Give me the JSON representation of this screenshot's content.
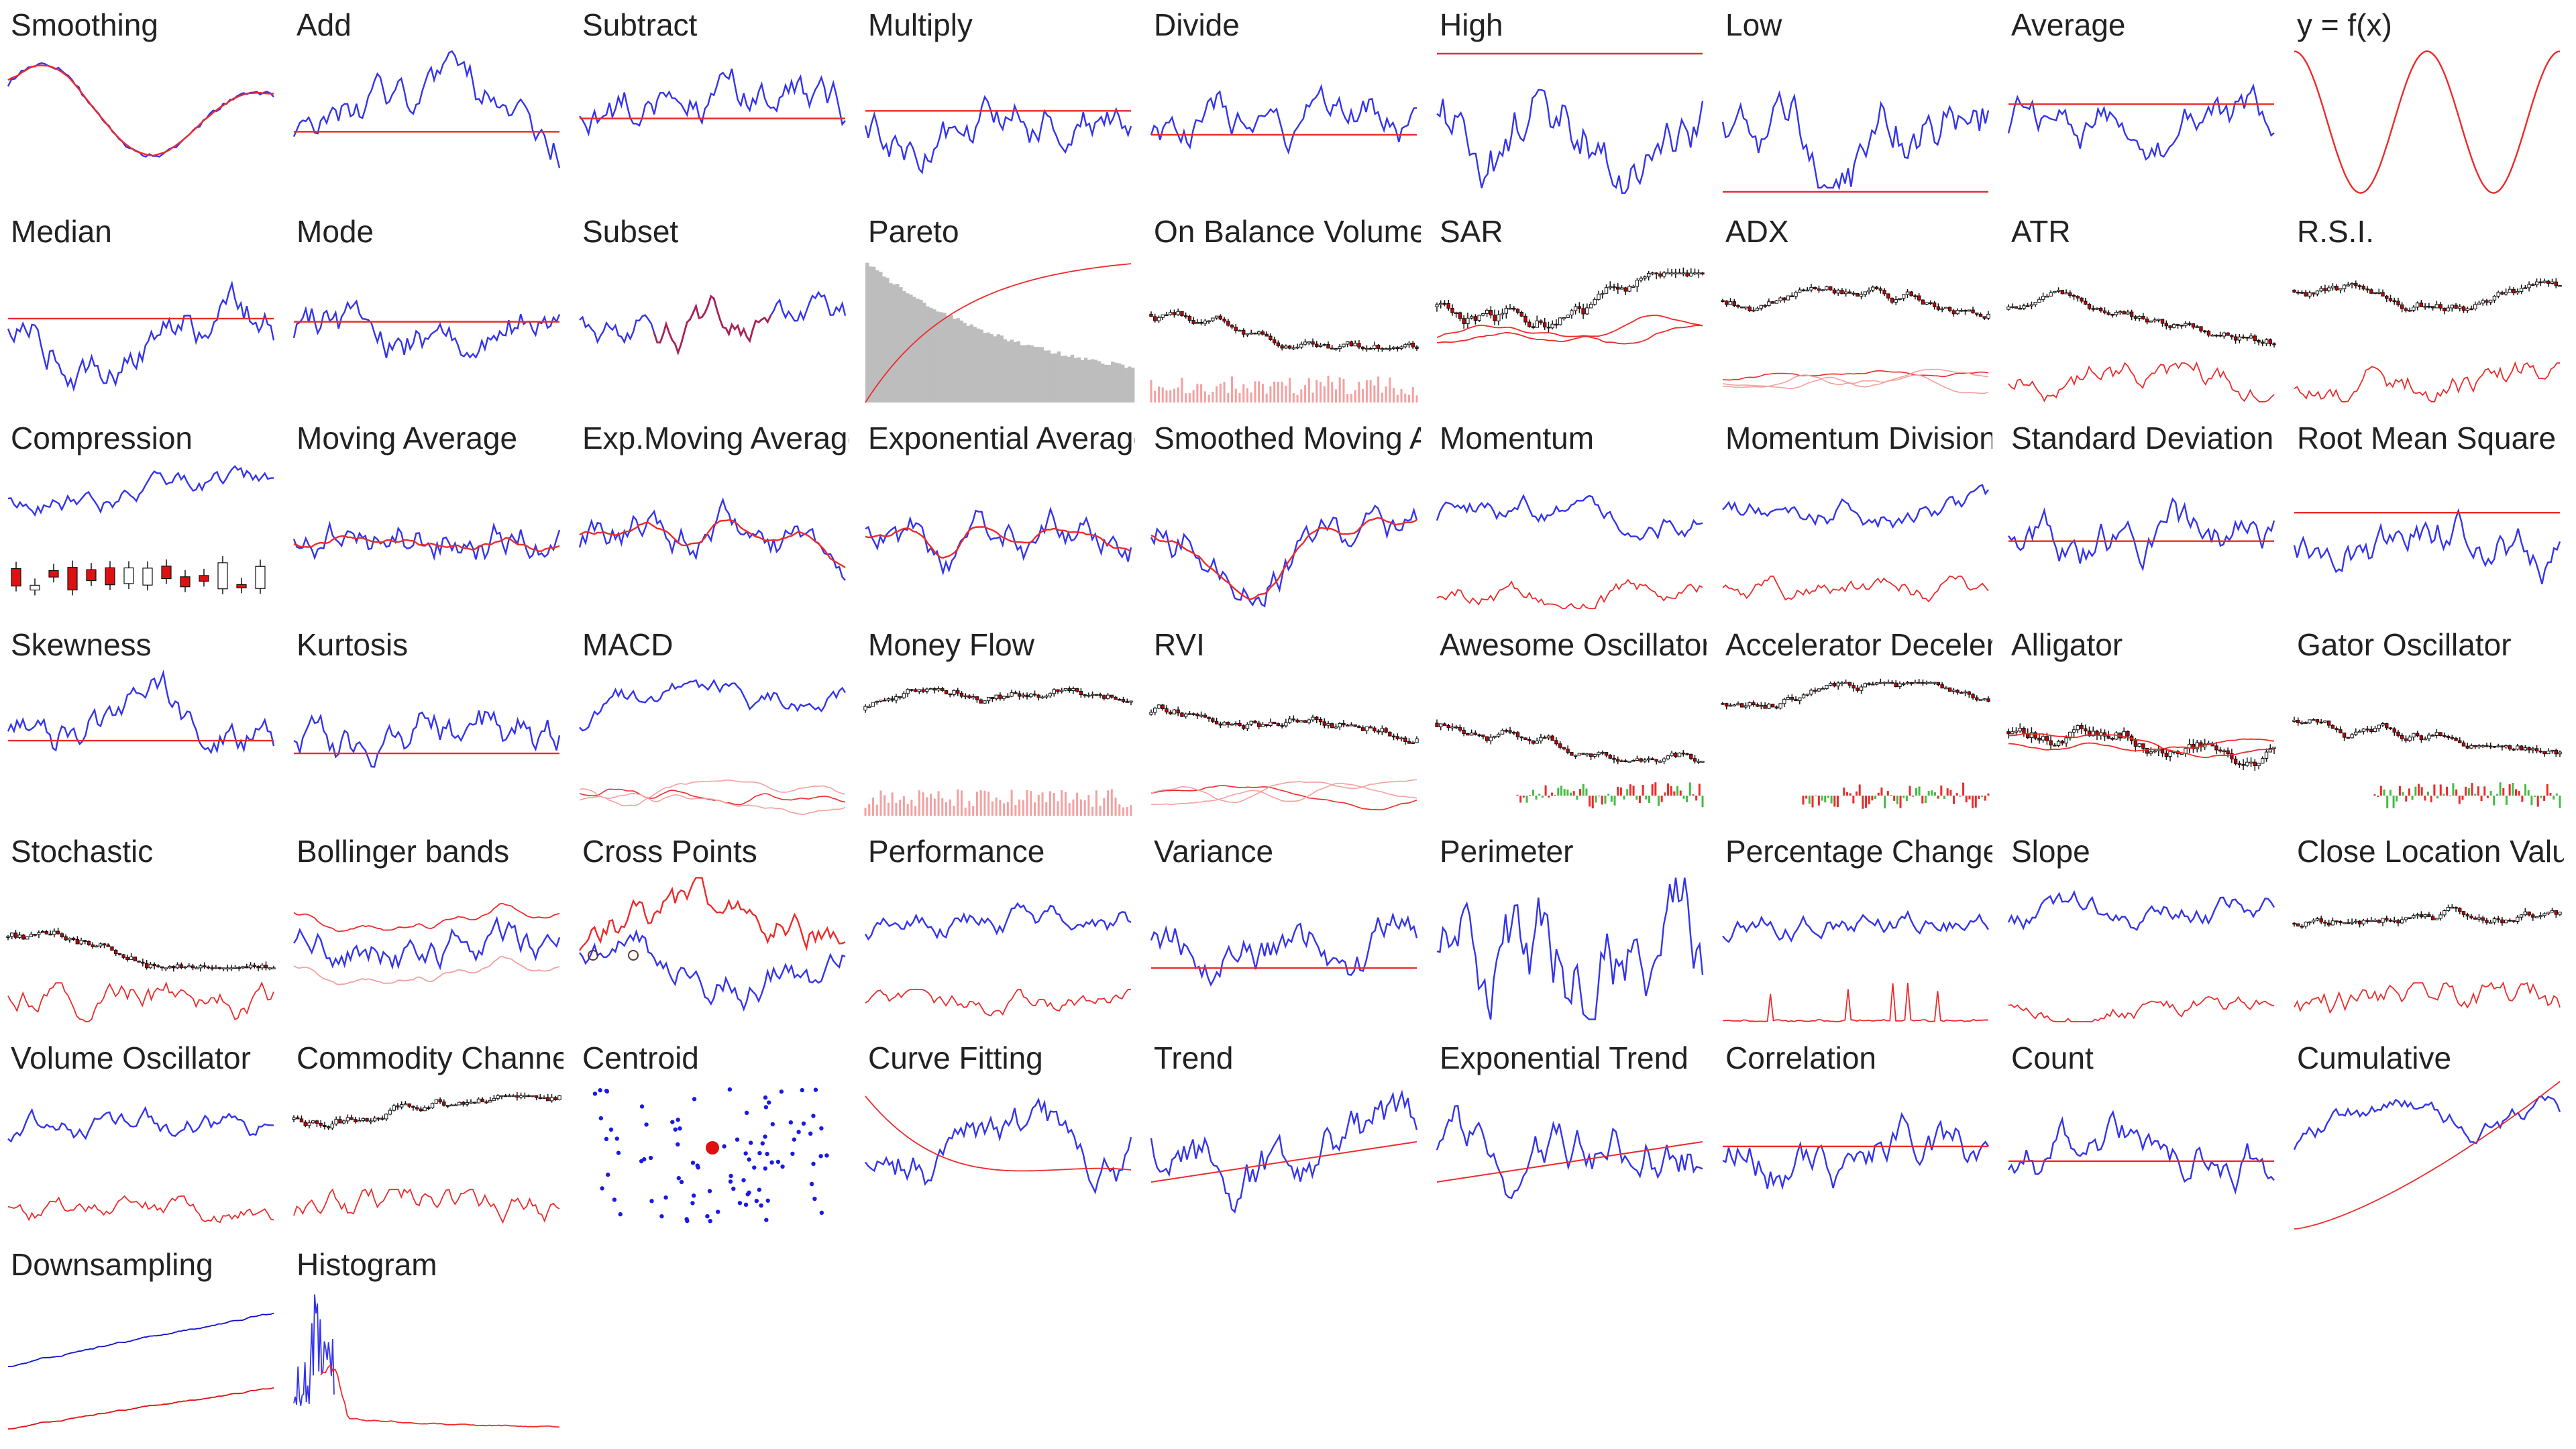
{
  "gallery": {
    "colors": {
      "blue": "#3333ee",
      "red": "#ee2a2a",
      "bar_gray": "#bdbdbd",
      "pink": "#f4a0a0",
      "green": "#44bb44",
      "dot_blue": "#1a1ae6"
    },
    "tiles": [
      {
        "title": "Smoothing",
        "kind": "smoothing"
      },
      {
        "title": "Add",
        "kind": "series_hline"
      },
      {
        "title": "Subtract",
        "kind": "series_hline"
      },
      {
        "title": "Multiply",
        "kind": "series_hline"
      },
      {
        "title": "Divide",
        "kind": "series_hline"
      },
      {
        "title": "High",
        "kind": "series_high"
      },
      {
        "title": "Low",
        "kind": "series_low"
      },
      {
        "title": "Average",
        "kind": "series_hline"
      },
      {
        "title": "y = f(x)",
        "kind": "sine"
      },
      {
        "title": "Median",
        "kind": "series_hline"
      },
      {
        "title": "Mode",
        "kind": "series_hline"
      },
      {
        "title": "Subset",
        "kind": "subset"
      },
      {
        "title": "Pareto",
        "kind": "pareto"
      },
      {
        "title": "On Balance Volume",
        "kind": "candles_volume"
      },
      {
        "title": "SAR",
        "kind": "candles_bands"
      },
      {
        "title": "ADX",
        "kind": "candles_lines"
      },
      {
        "title": "ATR",
        "kind": "candles_osc"
      },
      {
        "title": "R.S.I.",
        "kind": "candles_osc"
      },
      {
        "title": "Compression",
        "kind": "compression"
      },
      {
        "title": "Moving Average",
        "kind": "series_smooth"
      },
      {
        "title": "Exp.Moving Average",
        "kind": "series_smooth"
      },
      {
        "title": "Exponential Average",
        "kind": "series_smooth"
      },
      {
        "title": "Smoothed Moving Average",
        "kind": "series_smooth"
      },
      {
        "title": "Momentum",
        "kind": "series_osc"
      },
      {
        "title": "Momentum Division",
        "kind": "series_osc"
      },
      {
        "title": "Standard Deviation",
        "kind": "series_hline"
      },
      {
        "title": "Root Mean Square",
        "kind": "series_hline"
      },
      {
        "title": "Skewness",
        "kind": "series_hline"
      },
      {
        "title": "Kurtosis",
        "kind": "series_hline"
      },
      {
        "title": "MACD",
        "kind": "series_lines"
      },
      {
        "title": "Money Flow",
        "kind": "candles_volume"
      },
      {
        "title": "RVI",
        "kind": "candles_lines"
      },
      {
        "title": "Awesome Oscillator",
        "kind": "candles_hist"
      },
      {
        "title": "Accelerator Deceleration",
        "kind": "candles_hist"
      },
      {
        "title": "Alligator",
        "kind": "candles_bands"
      },
      {
        "title": "Gator Oscillator",
        "kind": "candles_hist"
      },
      {
        "title": "Stochastic",
        "kind": "candles_osc"
      },
      {
        "title": "Bollinger bands",
        "kind": "bollinger"
      },
      {
        "title": "Cross Points",
        "kind": "cross"
      },
      {
        "title": "Performance",
        "kind": "series_osc"
      },
      {
        "title": "Variance",
        "kind": "series_hline"
      },
      {
        "title": "Perimeter",
        "kind": "series_plain"
      },
      {
        "title": "Percentage Change",
        "kind": "series_spikes"
      },
      {
        "title": "Slope",
        "kind": "series_osc"
      },
      {
        "title": "Close Location Value",
        "kind": "candles_osc"
      },
      {
        "title": "Volume Oscillator",
        "kind": "series_osc"
      },
      {
        "title": "Commodity Channel Index",
        "kind": "candles_osc"
      },
      {
        "title": "Centroid",
        "kind": "centroid"
      },
      {
        "title": "Curve Fitting",
        "kind": "curve_fit"
      },
      {
        "title": "Trend",
        "kind": "trend"
      },
      {
        "title": "Exponential Trend",
        "kind": "trend"
      },
      {
        "title": "Correlation",
        "kind": "series_hline"
      },
      {
        "title": "Count",
        "kind": "series_hline"
      },
      {
        "title": "Cumulative",
        "kind": "cumulative"
      },
      {
        "title": "Downsampling",
        "kind": "downsampling"
      },
      {
        "title": "Histogram",
        "kind": "histogram"
      }
    ]
  }
}
